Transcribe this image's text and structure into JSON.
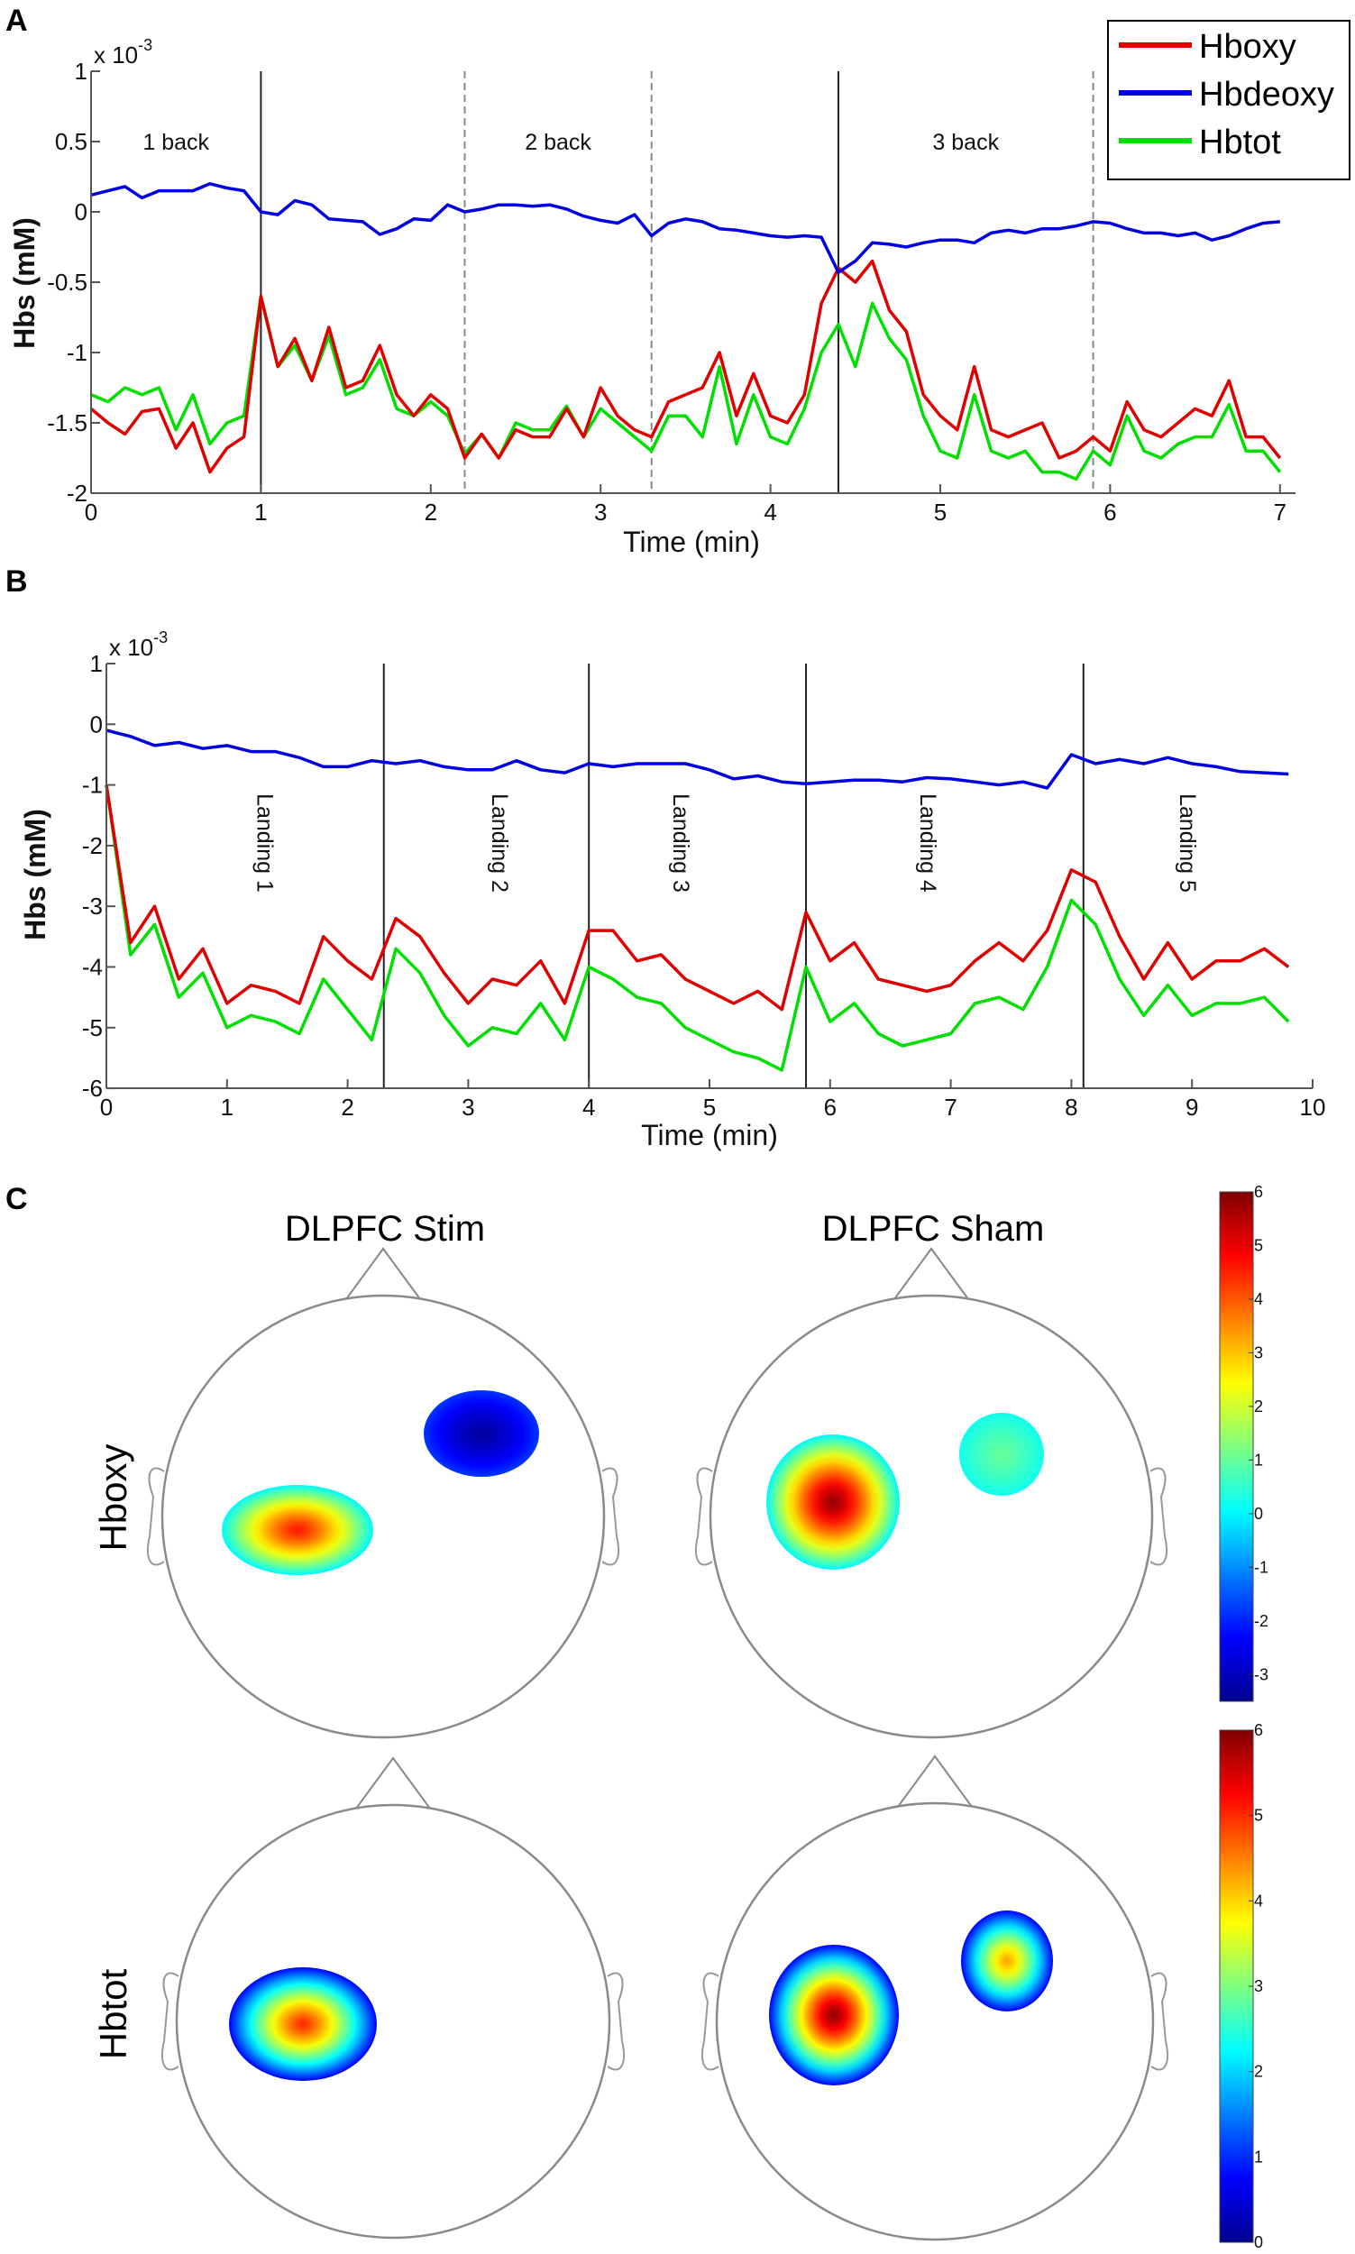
{
  "panels": {
    "a": "A",
    "b": "B",
    "c": "C"
  },
  "colors": {
    "Hboxy": "#e00000",
    "Hbdeoxy": "#0000e0",
    "Hbtot": "#00e000"
  },
  "chart_data": [
    {
      "type": "line",
      "panel": "A",
      "xlabel": "Time (min)",
      "ylabel": "Hbs (mM)",
      "y_multiplier": "x 10",
      "y_multiplier_exp": "-3",
      "xlim": [
        0,
        7.1
      ],
      "ylim": [
        -2,
        1
      ],
      "xticks": [
        0,
        1,
        2,
        3,
        4,
        5,
        6,
        7
      ],
      "yticks": [
        1,
        0.5,
        0,
        -0.5,
        -1,
        -1.5,
        -2
      ],
      "ytick_labels": [
        "1",
        "0.5",
        "0",
        "-0.5",
        "-1",
        "-1.5",
        "-2"
      ],
      "legend": {
        "position": "top-right",
        "entries": [
          "Hboxy",
          "Hbdeoxy",
          "Hbtot"
        ]
      },
      "events": [
        {
          "t": 1,
          "style": "solid"
        },
        {
          "t": 2.2,
          "style": "dashed"
        },
        {
          "t": 3.3,
          "style": "dashed"
        },
        {
          "t": 4.4,
          "style": "solid"
        },
        {
          "t": 5.9,
          "style": "dashed"
        }
      ],
      "annotations": [
        {
          "text": "1 back",
          "t": 0.5
        },
        {
          "text": "2 back",
          "t": 2.75
        },
        {
          "text": "3 back",
          "t": 5.15
        }
      ],
      "x": [
        0,
        0.1,
        0.2,
        0.3,
        0.4,
        0.5,
        0.6,
        0.7,
        0.8,
        0.9,
        1.0,
        1.1,
        1.2,
        1.3,
        1.4,
        1.5,
        1.6,
        1.7,
        1.8,
        1.9,
        2.0,
        2.1,
        2.2,
        2.3,
        2.4,
        2.5,
        2.6,
        2.7,
        2.8,
        2.9,
        3.0,
        3.1,
        3.2,
        3.3,
        3.4,
        3.5,
        3.6,
        3.7,
        3.8,
        3.9,
        4.0,
        4.1,
        4.2,
        4.3,
        4.4,
        4.5,
        4.6,
        4.7,
        4.8,
        4.9,
        5.0,
        5.1,
        5.2,
        5.3,
        5.4,
        5.5,
        5.6,
        5.7,
        5.8,
        5.9,
        6.0,
        6.1,
        6.2,
        6.3,
        6.4,
        6.5,
        6.6,
        6.7,
        6.8,
        6.9,
        7.0
      ],
      "series": [
        {
          "name": "Hboxy",
          "values": [
            -1.4,
            -1.5,
            -1.58,
            -1.42,
            -1.4,
            -1.68,
            -1.5,
            -1.85,
            -1.68,
            -1.6,
            -0.6,
            -1.1,
            -0.9,
            -1.2,
            -0.82,
            -1.25,
            -1.2,
            -0.95,
            -1.3,
            -1.45,
            -1.3,
            -1.4,
            -1.75,
            -1.58,
            -1.75,
            -1.55,
            -1.6,
            -1.6,
            -1.4,
            -1.6,
            -1.25,
            -1.45,
            -1.55,
            -1.6,
            -1.35,
            -1.3,
            -1.25,
            -1.0,
            -1.45,
            -1.15,
            -1.45,
            -1.5,
            -1.3,
            -0.65,
            -0.4,
            -0.5,
            -0.35,
            -0.7,
            -0.85,
            -1.3,
            -1.45,
            -1.55,
            -1.1,
            -1.55,
            -1.6,
            -1.55,
            -1.5,
            -1.75,
            -1.7,
            -1.6,
            -1.7,
            -1.35,
            -1.55,
            -1.6,
            -1.5,
            -1.4,
            -1.45,
            -1.2,
            -1.6,
            -1.6,
            -1.75
          ]
        },
        {
          "name": "Hbdeoxy",
          "values": [
            0.12,
            0.15,
            0.18,
            0.1,
            0.15,
            0.15,
            0.15,
            0.2,
            0.17,
            0.15,
            0.0,
            -0.02,
            0.08,
            0.05,
            -0.05,
            -0.06,
            -0.07,
            -0.16,
            -0.12,
            -0.05,
            -0.06,
            0.05,
            0.0,
            0.02,
            0.05,
            0.05,
            0.04,
            0.05,
            0.02,
            -0.03,
            -0.06,
            -0.08,
            -0.02,
            -0.17,
            -0.08,
            -0.05,
            -0.07,
            -0.12,
            -0.13,
            -0.15,
            -0.17,
            -0.18,
            -0.17,
            -0.18,
            -0.43,
            -0.35,
            -0.22,
            -0.23,
            -0.25,
            -0.22,
            -0.2,
            -0.2,
            -0.22,
            -0.15,
            -0.13,
            -0.15,
            -0.12,
            -0.12,
            -0.1,
            -0.07,
            -0.08,
            -0.12,
            -0.15,
            -0.15,
            -0.17,
            -0.15,
            -0.2,
            -0.17,
            -0.12,
            -0.08,
            -0.07
          ]
        },
        {
          "name": "Hbtot",
          "values": [
            -1.3,
            -1.35,
            -1.25,
            -1.3,
            -1.25,
            -1.55,
            -1.3,
            -1.65,
            -1.5,
            -1.45,
            -0.6,
            -1.1,
            -0.95,
            -1.2,
            -0.88,
            -1.3,
            -1.25,
            -1.05,
            -1.4,
            -1.45,
            -1.35,
            -1.45,
            -1.72,
            -1.58,
            -1.75,
            -1.5,
            -1.55,
            -1.55,
            -1.38,
            -1.6,
            -1.4,
            -1.5,
            -1.6,
            -1.7,
            -1.45,
            -1.45,
            -1.6,
            -1.1,
            -1.65,
            -1.3,
            -1.6,
            -1.65,
            -1.4,
            -1.0,
            -0.8,
            -1.1,
            -0.65,
            -0.9,
            -1.05,
            -1.45,
            -1.7,
            -1.75,
            -1.3,
            -1.7,
            -1.75,
            -1.7,
            -1.85,
            -1.85,
            -1.9,
            -1.7,
            -1.8,
            -1.45,
            -1.7,
            -1.75,
            -1.65,
            -1.6,
            -1.6,
            -1.37,
            -1.7,
            -1.7,
            -1.85
          ]
        }
      ]
    },
    {
      "type": "line",
      "panel": "B",
      "xlabel": "Time (min)",
      "ylabel": "Hbs (mM)",
      "y_multiplier": "x 10",
      "y_multiplier_exp": "-3",
      "xlim": [
        0,
        10
      ],
      "ylim": [
        -6,
        1
      ],
      "xticks": [
        0,
        1,
        2,
        3,
        4,
        5,
        6,
        7,
        8,
        9,
        10
      ],
      "yticks": [
        1,
        0,
        -1,
        -2,
        -3,
        -4,
        -5,
        -6
      ],
      "ytick_labels": [
        "1",
        "0",
        "-1",
        "-2",
        "-3",
        "-4",
        "-5",
        "-6"
      ],
      "events": [
        {
          "t": 2.3,
          "style": "solid"
        },
        {
          "t": 4.0,
          "style": "solid"
        },
        {
          "t": 5.8,
          "style": "solid"
        },
        {
          "t": 8.1,
          "style": "solid"
        }
      ],
      "annotations": [
        {
          "text": "Landing 1",
          "t": 1.25
        },
        {
          "text": "Landing 2",
          "t": 3.2
        },
        {
          "text": "Landing 3",
          "t": 4.7
        },
        {
          "text": "Landing 4",
          "t": 6.75
        },
        {
          "text": "Landing 5",
          "t": 8.9
        }
      ],
      "x": [
        0,
        0.2,
        0.4,
        0.6,
        0.8,
        1.0,
        1.2,
        1.4,
        1.6,
        1.8,
        2.0,
        2.2,
        2.4,
        2.6,
        2.8,
        3.0,
        3.2,
        3.4,
        3.6,
        3.8,
        4.0,
        4.2,
        4.4,
        4.6,
        4.8,
        5.0,
        5.2,
        5.4,
        5.6,
        5.8,
        6.0,
        6.2,
        6.4,
        6.6,
        6.8,
        7.0,
        7.2,
        7.4,
        7.6,
        7.8,
        8.0,
        8.2,
        8.4,
        8.6,
        8.8,
        9.0,
        9.2,
        9.4,
        9.6,
        9.8
      ],
      "series": [
        {
          "name": "Hboxy",
          "values": [
            -1.0,
            -3.6,
            -3.0,
            -4.2,
            -3.7,
            -4.6,
            -4.3,
            -4.4,
            -4.6,
            -3.5,
            -3.9,
            -4.2,
            -3.2,
            -3.5,
            -4.1,
            -4.6,
            -4.2,
            -4.3,
            -3.9,
            -4.6,
            -3.4,
            -3.4,
            -3.9,
            -3.8,
            -4.2,
            -4.4,
            -4.6,
            -4.4,
            -4.7,
            -3.1,
            -3.9,
            -3.6,
            -4.2,
            -4.3,
            -4.4,
            -4.3,
            -3.9,
            -3.6,
            -3.9,
            -3.4,
            -2.4,
            -2.6,
            -3.5,
            -4.2,
            -3.6,
            -4.2,
            -3.9,
            -3.9,
            -3.7,
            -4.0
          ]
        },
        {
          "name": "Hbdeoxy",
          "values": [
            -0.1,
            -0.2,
            -0.35,
            -0.3,
            -0.4,
            -0.35,
            -0.45,
            -0.45,
            -0.55,
            -0.7,
            -0.7,
            -0.6,
            -0.65,
            -0.6,
            -0.7,
            -0.75,
            -0.75,
            -0.6,
            -0.75,
            -0.8,
            -0.65,
            -0.7,
            -0.65,
            -0.65,
            -0.65,
            -0.75,
            -0.9,
            -0.85,
            -0.95,
            -0.98,
            -0.95,
            -0.92,
            -0.92,
            -0.95,
            -0.88,
            -0.9,
            -0.95,
            -1.0,
            -0.95,
            -1.05,
            -0.5,
            -0.65,
            -0.58,
            -0.65,
            -0.55,
            -0.65,
            -0.7,
            -0.78,
            -0.8,
            -0.82
          ]
        },
        {
          "name": "Hbtot",
          "values": [
            -1.0,
            -3.8,
            -3.3,
            -4.5,
            -4.1,
            -5.0,
            -4.8,
            -4.9,
            -5.1,
            -4.2,
            -4.7,
            -5.2,
            -3.7,
            -4.1,
            -4.8,
            -5.3,
            -5.0,
            -5.1,
            -4.6,
            -5.2,
            -4.0,
            -4.2,
            -4.5,
            -4.6,
            -5.0,
            -5.2,
            -5.4,
            -5.5,
            -5.7,
            -4.0,
            -4.9,
            -4.6,
            -5.1,
            -5.3,
            -5.2,
            -5.1,
            -4.6,
            -4.5,
            -4.7,
            -4.0,
            -2.9,
            -3.3,
            -4.2,
            -4.8,
            -4.3,
            -4.8,
            -4.6,
            -4.6,
            -4.5,
            -4.9
          ]
        }
      ]
    },
    {
      "type": "heatmap",
      "panel": "C",
      "columns": [
        "DLPFC Stim",
        "DLPFC Sham"
      ],
      "rows": [
        {
          "label": "Hboxy",
          "colorbar": {
            "range": [
              -3.5,
              6
            ],
            "ticks": [
              "6",
              "5",
              "4",
              "3",
              "2",
              "1",
              "0",
              "-1",
              "-2",
              "-3"
            ],
            "tick_values": [
              6,
              5,
              4,
              3,
              2,
              1,
              0,
              -1,
              -2,
              -3
            ]
          },
          "maps": [
            {
              "column": "DLPFC Stim",
              "blobs": [
                {
                  "side": "left",
                  "peak": 4.6,
                  "edge": 0
                },
                {
                  "side": "right",
                  "peak": -3.3,
                  "edge": -1.8
                }
              ]
            },
            {
              "column": "DLPFC Sham",
              "blobs": [
                {
                  "side": "left",
                  "peak": 5.8,
                  "edge": 0
                },
                {
                  "side": "right",
                  "peak": 1.0,
                  "edge": 0.2
                }
              ]
            }
          ]
        },
        {
          "label": "Hbtot",
          "colorbar": {
            "range": [
              0,
              6
            ],
            "ticks": [
              "6",
              "5",
              "4",
              "3",
              "2",
              "1",
              "0"
            ],
            "tick_values": [
              6,
              5,
              4,
              3,
              2,
              1,
              0
            ]
          },
          "maps": [
            {
              "column": "DLPFC Stim",
              "blobs": [
                {
                  "side": "left",
                  "peak": 5.0,
                  "edge": 0.7
                }
              ]
            },
            {
              "column": "DLPFC Sham",
              "blobs": [
                {
                  "side": "left",
                  "peak": 5.9,
                  "edge": 0.7
                },
                {
                  "side": "right",
                  "peak": 4.3,
                  "edge": 0.7
                }
              ]
            }
          ]
        }
      ]
    }
  ]
}
